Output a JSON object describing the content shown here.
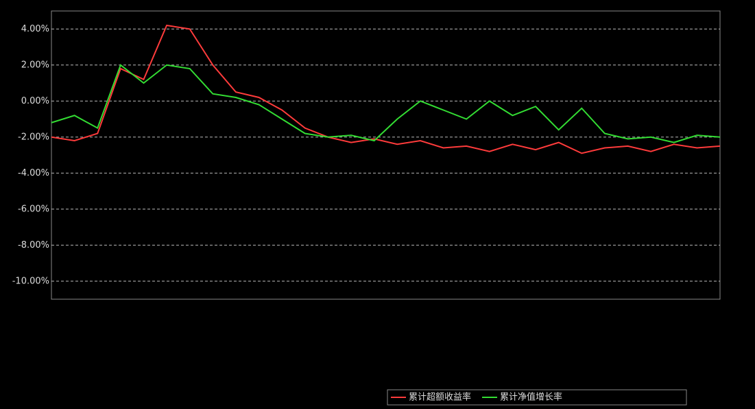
{
  "chart_data": {
    "type": "line",
    "yticks": [
      {
        "value": 4,
        "label": "4.00%"
      },
      {
        "value": 2,
        "label": "2.00%"
      },
      {
        "value": 0,
        "label": "0.00%"
      },
      {
        "value": -2,
        "label": "-2.00%"
      },
      {
        "value": -4,
        "label": "-4.00%"
      },
      {
        "value": -6,
        "label": "-6.00%"
      },
      {
        "value": -8,
        "label": "-8.00%"
      },
      {
        "value": -10,
        "label": "-10.00%"
      }
    ],
    "ylim": [
      -11,
      5
    ],
    "grid": true,
    "legend": "bottom-right",
    "series": [
      {
        "name": "累计超额收益率",
        "color": "#ff3b3b",
        "values": [
          -2,
          -2.2,
          -1.8,
          1.8,
          1.2,
          4.2,
          4.0,
          2.0,
          0.5,
          0.2,
          -0.5,
          -1.5,
          -2.0,
          -2.3,
          -2.1,
          -2.4,
          -2.2,
          -2.6,
          -2.5,
          -2.8,
          -2.4,
          -2.7,
          -2.3,
          -2.9,
          -2.6,
          -2.5,
          -2.8,
          -2.4,
          -2.6,
          -2.5
        ]
      },
      {
        "name": "累计净值增长率",
        "color": "#33dd33",
        "values": [
          -1.2,
          -0.8,
          -1.5,
          2.0,
          1.0,
          2.0,
          1.8,
          0.4,
          0.2,
          -0.2,
          -1.0,
          -1.8,
          -2.0,
          -1.9,
          -2.2,
          -1.0,
          0.0,
          -0.5,
          -1.0,
          0.0,
          -0.8,
          -0.3,
          -1.6,
          -0.4,
          -1.8,
          -2.1,
          -2.0,
          -2.3,
          -1.9,
          -2.0
        ]
      }
    ]
  }
}
